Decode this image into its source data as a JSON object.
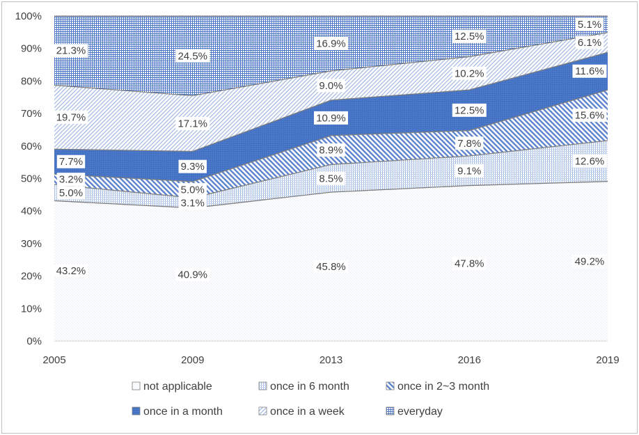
{
  "chart_data": {
    "type": "area",
    "stacked": true,
    "stack_mode": "percent",
    "x": [
      "2005",
      "2009",
      "2013",
      "2016",
      "2019"
    ],
    "series": [
      {
        "name": "not applicable",
        "values": [
          43.2,
          40.9,
          45.8,
          47.8,
          49.2
        ],
        "labels": [
          "43.2%",
          "40.9%",
          "45.8%",
          "47.8%",
          "49.2%"
        ]
      },
      {
        "name": "once in 6 month",
        "values": [
          5.0,
          3.1,
          8.5,
          9.1,
          12.6
        ],
        "labels": [
          "5.0%",
          "3.1%",
          "8.5%",
          "9.1%",
          "12.6%"
        ]
      },
      {
        "name": "once in 2~3 month",
        "values": [
          3.2,
          5.0,
          8.9,
          7.8,
          15.6
        ],
        "labels": [
          "3.2%",
          "5.0%",
          "8.9%",
          "7.8%",
          "15.6%"
        ]
      },
      {
        "name": "once in a month",
        "values": [
          7.7,
          9.3,
          10.9,
          12.5,
          11.6
        ],
        "labels": [
          "7.7%",
          "9.3%",
          "10.9%",
          "12.5%",
          "11.6%"
        ]
      },
      {
        "name": "once in a week",
        "values": [
          19.7,
          17.1,
          9.0,
          10.2,
          6.1
        ],
        "labels": [
          "19.7%",
          "17.1%",
          "9.0%",
          "10.2%",
          "6.1%"
        ]
      },
      {
        "name": "everyday",
        "values": [
          21.3,
          24.5,
          16.9,
          12.5,
          5.1
        ],
        "labels": [
          "21.3%",
          "24.5%",
          "16.9%",
          "12.5%",
          "5.1%"
        ]
      }
    ],
    "y_ticks": [
      "0%",
      "10%",
      "20%",
      "30%",
      "40%",
      "50%",
      "60%",
      "70%",
      "80%",
      "90%",
      "100%"
    ],
    "ylim": [
      0,
      100
    ],
    "title": "",
    "xlabel": "",
    "ylabel": "",
    "grid": false,
    "legend_position": "bottom",
    "colors": {
      "not applicable": "#dfe7f4",
      "once in 6 month": "#a9c0e6",
      "once in 2~3 month": "#6f93d6",
      "once in a month": "#4472c4",
      "once in a week": "#b4c7e7",
      "everyday": "#7b9bd8",
      "edge": "#7f7f7f"
    }
  }
}
